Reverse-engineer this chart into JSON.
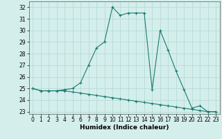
{
  "line1_x": [
    0,
    1,
    2,
    3,
    4,
    5,
    6,
    7,
    8,
    9,
    10,
    11,
    12,
    13,
    14,
    15,
    16,
    17,
    18,
    19,
    20,
    21,
    22,
    23
  ],
  "line1_y": [
    25.0,
    24.8,
    24.8,
    24.8,
    24.9,
    25.0,
    25.5,
    27.0,
    28.5,
    29.0,
    32.0,
    31.3,
    31.5,
    31.5,
    31.5,
    24.9,
    30.0,
    28.3,
    26.5,
    24.9,
    23.3,
    23.5,
    23.0,
    23.0
  ],
  "line2_x": [
    0,
    1,
    2,
    3,
    4,
    5,
    6,
    7,
    8,
    9,
    10,
    11,
    12,
    13,
    14,
    15,
    16,
    17,
    18,
    19,
    20,
    21,
    22,
    23
  ],
  "line2_y": [
    25.0,
    24.8,
    24.8,
    24.8,
    24.8,
    24.7,
    24.6,
    24.5,
    24.4,
    24.3,
    24.2,
    24.1,
    24.0,
    23.9,
    23.8,
    23.7,
    23.6,
    23.5,
    23.4,
    23.3,
    23.2,
    23.1,
    23.0,
    23.0
  ],
  "line_color": "#1a7a6e",
  "bg_color": "#d4eeeb",
  "grid_color": "#b0d8d4",
  "xlabel": "Humidex (Indice chaleur)",
  "ylim": [
    22.8,
    32.5
  ],
  "xlim": [
    -0.5,
    23.5
  ],
  "yticks": [
    23,
    24,
    25,
    26,
    27,
    28,
    29,
    30,
    31,
    32
  ],
  "xticks": [
    0,
    1,
    2,
    3,
    4,
    5,
    6,
    7,
    8,
    9,
    10,
    11,
    12,
    13,
    14,
    15,
    16,
    17,
    18,
    19,
    20,
    21,
    22,
    23
  ],
  "tick_fontsize": 5.5,
  "xlabel_fontsize": 6.5
}
